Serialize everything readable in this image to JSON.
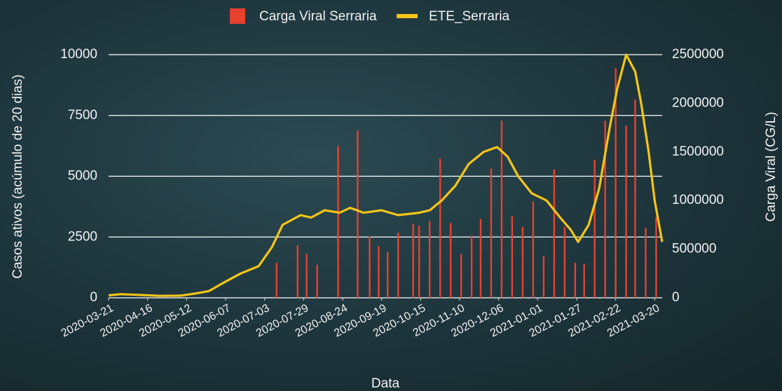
{
  "chart_data": {
    "type": "combo",
    "x_label": "Data",
    "y_label": "Casos ativos (acúmulo de 20 dias)",
    "y2_label": "Carga Viral (CG/L)",
    "xlim": [
      "2020-03-21",
      "2021-03-25"
    ],
    "xticks": [
      "2020-03-21",
      "2020-04-16",
      "2020-05-12",
      "2020-06-07",
      "2020-07-03",
      "2020-07-29",
      "2020-08-24",
      "2020-09-19",
      "2020-10-15",
      "2020-11-10",
      "2020-12-06",
      "2021-01-01",
      "2021-01-27",
      "2021-02-22",
      "2021-03-20"
    ],
    "ylim": [
      0,
      10000
    ],
    "yticks": [
      0,
      2500,
      5000,
      7500,
      10000
    ],
    "y2lim": [
      0,
      2500000
    ],
    "y2ticks": [
      0,
      500000,
      1000000,
      1500000,
      2000000,
      2500000
    ],
    "grid": true,
    "series": [
      {
        "name": "Carga Viral Serraria",
        "type": "bar",
        "axis": "y2",
        "color": "#e8412f",
        "x": [
          "2020-07-11",
          "2020-07-25",
          "2020-07-31",
          "2020-08-07",
          "2020-08-21",
          "2020-09-03",
          "2020-09-11",
          "2020-09-17",
          "2020-09-23",
          "2020-09-30",
          "2020-10-10",
          "2020-10-14",
          "2020-10-21",
          "2020-10-28",
          "2020-11-04",
          "2020-11-11",
          "2020-11-18",
          "2020-11-24",
          "2020-12-01",
          "2020-12-08",
          "2020-12-15",
          "2020-12-22",
          "2020-12-29",
          "2021-01-05",
          "2021-01-12",
          "2021-01-19",
          "2021-01-26",
          "2021-02-01",
          "2021-02-08",
          "2021-02-15",
          "2021-02-22",
          "2021-03-01",
          "2021-03-07",
          "2021-03-14",
          "2021-03-21"
        ],
        "values": [
          360000,
          540000,
          450000,
          340000,
          1560000,
          1720000,
          630000,
          530000,
          470000,
          670000,
          760000,
          740000,
          790000,
          1430000,
          770000,
          450000,
          640000,
          810000,
          1330000,
          1820000,
          840000,
          730000,
          990000,
          430000,
          1320000,
          730000,
          360000,
          350000,
          1420000,
          1820000,
          2360000,
          1770000,
          2040000,
          720000,
          830000
        ]
      },
      {
        "name": "ETE_Serraria",
        "type": "line",
        "axis": "y",
        "color": "#f5c518",
        "x": [
          "2020-03-21",
          "2020-03-29",
          "2020-04-10",
          "2020-04-24",
          "2020-05-08",
          "2020-05-18",
          "2020-05-27",
          "2020-06-05",
          "2020-06-17",
          "2020-06-29",
          "2020-07-08",
          "2020-07-15",
          "2020-07-27",
          "2020-08-03",
          "2020-08-12",
          "2020-08-22",
          "2020-08-29",
          "2020-09-07",
          "2020-09-19",
          "2020-09-30",
          "2020-10-14",
          "2020-10-21",
          "2020-10-29",
          "2020-11-07",
          "2020-11-16",
          "2020-11-26",
          "2020-12-05",
          "2020-12-12",
          "2020-12-19",
          "2020-12-28",
          "2021-01-07",
          "2021-01-16",
          "2021-01-23",
          "2021-01-28",
          "2021-02-04",
          "2021-02-11",
          "2021-02-18",
          "2021-02-23",
          "2021-03-01",
          "2021-03-07",
          "2021-03-11",
          "2021-03-16",
          "2021-03-20",
          "2021-03-25"
        ],
        "values": [
          100,
          150,
          120,
          80,
          90,
          180,
          280,
          600,
          1000,
          1300,
          2100,
          3000,
          3400,
          3300,
          3600,
          3500,
          3700,
          3500,
          3600,
          3400,
          3500,
          3600,
          4000,
          4600,
          5500,
          6000,
          6200,
          5800,
          5000,
          4300,
          4000,
          3300,
          2800,
          2300,
          3000,
          4500,
          7000,
          8600,
          10000,
          9300,
          8000,
          6000,
          4000,
          2300
        ]
      }
    ]
  }
}
